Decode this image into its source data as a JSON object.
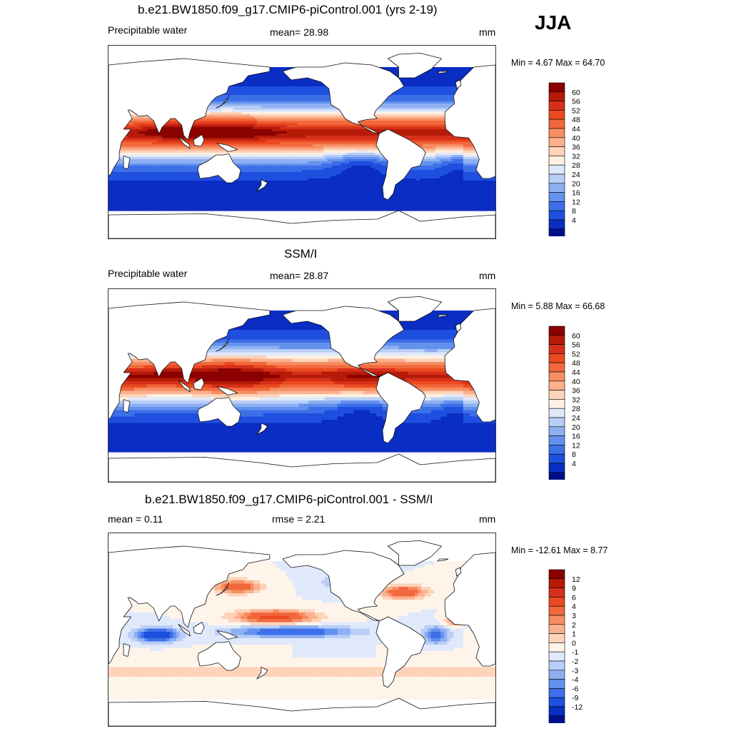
{
  "season": "JJA",
  "units": "mm",
  "panels": [
    {
      "title": "b.e21.BW1850.f09_g17.CMIP6-piControl.001 (yrs 2-19)",
      "left_label": "Precipitable water",
      "center_label": "mean=  28.98",
      "units": "mm",
      "minmax": "Min =   4.67 Max =  64.70",
      "kind": "abs",
      "colorbar": {
        "labels": [
          "60",
          "56",
          "52",
          "48",
          "44",
          "40",
          "36",
          "32",
          "28",
          "24",
          "20",
          "16",
          "12",
          "8",
          "4"
        ],
        "colors": [
          "#8b0000",
          "#b51b08",
          "#d7301a",
          "#ea4a1f",
          "#f2683d",
          "#f78d62",
          "#fbb08e",
          "#fdd3b9",
          "#fff0e2",
          "#dfe9fb",
          "#b8cef7",
          "#8eb0f2",
          "#6391ee",
          "#3d6fe8",
          "#1f4fdf",
          "#0a2dc3",
          "#000f8a"
        ]
      },
      "stats": {
        "mean": 28.98,
        "min": 4.67,
        "max": 64.7
      }
    },
    {
      "title": "SSM/I",
      "left_label": "Precipitable water",
      "center_label": "mean=  28.87",
      "units": "mm",
      "minmax": "Min =   5.88 Max =  66.68",
      "kind": "abs",
      "colorbar": {
        "labels": [
          "60",
          "56",
          "52",
          "48",
          "44",
          "40",
          "36",
          "32",
          "28",
          "24",
          "20",
          "16",
          "12",
          "8",
          "4"
        ],
        "colors": [
          "#8b0000",
          "#b51b08",
          "#d7301a",
          "#ea4a1f",
          "#f2683d",
          "#f78d62",
          "#fbb08e",
          "#fdd3b9",
          "#fff0e2",
          "#dfe9fb",
          "#b8cef7",
          "#8eb0f2",
          "#6391ee",
          "#3d6fe8",
          "#1f4fdf",
          "#0a2dc3",
          "#000f8a"
        ]
      },
      "stats": {
        "mean": 28.87,
        "min": 5.88,
        "max": 66.68
      }
    },
    {
      "title": "b.e21.BW1850.f09_g17.CMIP6-piControl.001 - SSM/I",
      "left_label": "mean =   0.11",
      "center_label": "rmse =   2.21",
      "units": "mm",
      "minmax": "Min = -12.61 Max =   8.77",
      "kind": "diff",
      "colorbar": {
        "labels": [
          "12",
          "9",
          "6",
          "4",
          "3",
          "2",
          "1",
          "0",
          "-1",
          "-2",
          "-3",
          "-4",
          "-6",
          "-9",
          "-12"
        ],
        "colors": [
          "#8b0000",
          "#b51b08",
          "#d7301a",
          "#ea4a1f",
          "#f2683d",
          "#f78d62",
          "#fbb08e",
          "#fdd3b9",
          "#fff4ea",
          "#dfe9fb",
          "#b8cef7",
          "#8eb0f2",
          "#6391ee",
          "#3d6fe8",
          "#1f4fdf",
          "#0a2dc3",
          "#000f8a"
        ]
      },
      "stats": {
        "mean": 0.11,
        "rmse": 2.21,
        "min": -12.61,
        "max": 8.77
      }
    }
  ]
}
